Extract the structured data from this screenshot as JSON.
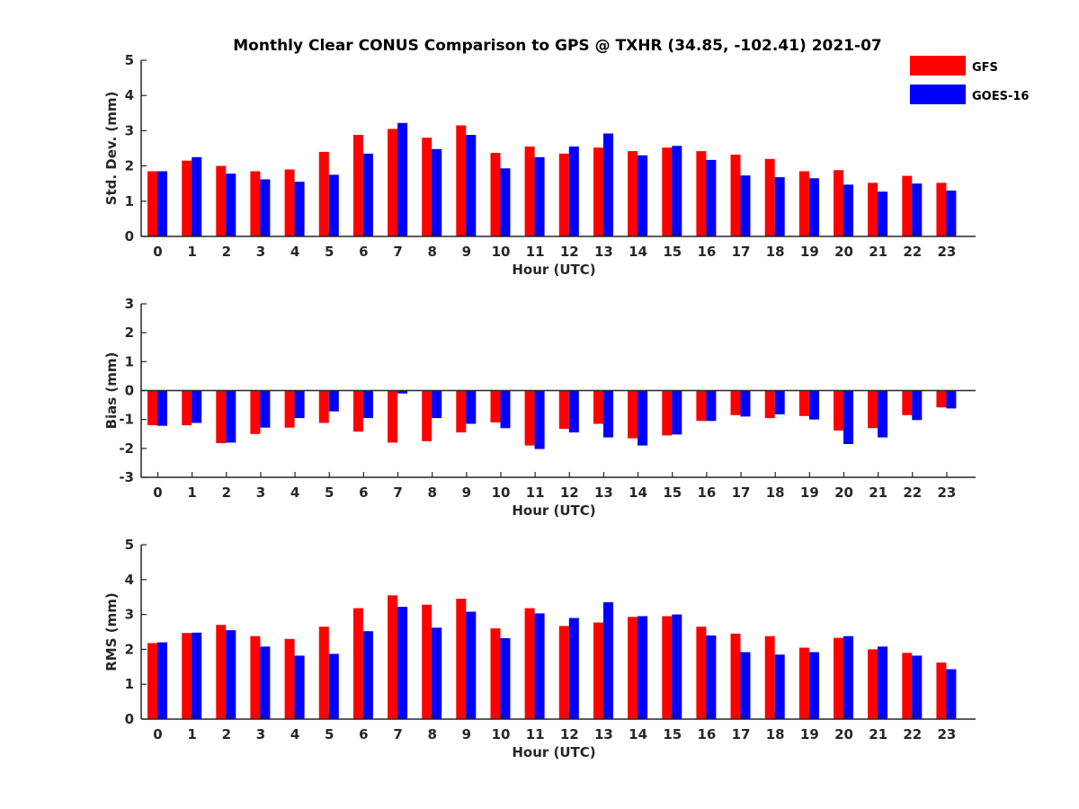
{
  "title": "Monthly Clear CONUS Comparison to GPS @ TXHR (34.85, -102.41) 2021-07",
  "legend": [
    {
      "name": "GFS",
      "color": "#ff0000"
    },
    {
      "name": "GOES-16",
      "color": "#0000ff"
    }
  ],
  "chart_data": [
    {
      "type": "bar",
      "id": "stddev",
      "categories": [
        "0",
        "1",
        "2",
        "3",
        "4",
        "5",
        "6",
        "7",
        "8",
        "9",
        "10",
        "11",
        "12",
        "13",
        "14",
        "15",
        "16",
        "17",
        "18",
        "19",
        "20",
        "21",
        "22",
        "23"
      ],
      "xlabel": "Hour (UTC)",
      "ylabel": "Std. Dev. (mm)",
      "ylim": [
        0,
        5
      ],
      "yticks": [
        "0",
        "1",
        "2",
        "3",
        "4",
        "5"
      ],
      "series": [
        {
          "name": "GFS",
          "color": "#ff0000",
          "values": [
            1.85,
            2.15,
            2.0,
            1.85,
            1.9,
            2.4,
            2.88,
            3.05,
            2.8,
            3.15,
            2.37,
            2.55,
            2.35,
            2.52,
            2.42,
            2.52,
            2.42,
            2.32,
            2.2,
            1.85,
            1.88,
            1.52,
            1.72,
            1.52
          ]
        },
        {
          "name": "GOES-16",
          "color": "#0000ff",
          "values": [
            1.85,
            2.25,
            1.78,
            1.62,
            1.55,
            1.75,
            2.35,
            3.22,
            2.48,
            2.88,
            1.93,
            2.25,
            2.55,
            2.92,
            2.3,
            2.57,
            2.17,
            1.73,
            1.68,
            1.65,
            1.47,
            1.27,
            1.5,
            1.3
          ]
        }
      ]
    },
    {
      "type": "bar",
      "id": "bias",
      "categories": [
        "0",
        "1",
        "2",
        "3",
        "4",
        "5",
        "6",
        "7",
        "8",
        "9",
        "10",
        "11",
        "12",
        "13",
        "14",
        "15",
        "16",
        "17",
        "18",
        "19",
        "20",
        "21",
        "22",
        "23"
      ],
      "xlabel": "Hour (UTC)",
      "ylabel": "Bias (mm)",
      "ylim": [
        -3,
        3
      ],
      "yticks": [
        "-3",
        "-2",
        "-1",
        "0",
        "1",
        "2",
        "3"
      ],
      "series": [
        {
          "name": "GFS",
          "color": "#ff0000",
          "values": [
            -1.2,
            -1.2,
            -1.82,
            -1.5,
            -1.28,
            -1.12,
            -1.42,
            -1.8,
            -1.75,
            -1.45,
            -1.1,
            -1.9,
            -1.32,
            -1.15,
            -1.65,
            -1.55,
            -1.05,
            -0.85,
            -0.95,
            -0.88,
            -1.38,
            -1.3,
            -0.85,
            -0.58
          ]
        },
        {
          "name": "GOES-16",
          "color": "#0000ff",
          "values": [
            -1.22,
            -1.12,
            -1.8,
            -1.28,
            -0.95,
            -0.72,
            -0.95,
            -0.1,
            -0.95,
            -1.15,
            -1.3,
            -2.02,
            -1.45,
            -1.62,
            -1.9,
            -1.52,
            -1.05,
            -0.9,
            -0.82,
            -1.0,
            -1.85,
            -1.62,
            -1.02,
            -0.62
          ]
        }
      ]
    },
    {
      "type": "bar",
      "id": "rms",
      "categories": [
        "0",
        "1",
        "2",
        "3",
        "4",
        "5",
        "6",
        "7",
        "8",
        "9",
        "10",
        "11",
        "12",
        "13",
        "14",
        "15",
        "16",
        "17",
        "18",
        "19",
        "20",
        "21",
        "22",
        "23"
      ],
      "xlabel": "Hour (UTC)",
      "ylabel": "RMS (mm)",
      "ylim": [
        0,
        5
      ],
      "yticks": [
        "0",
        "1",
        "2",
        "3",
        "4",
        "5"
      ],
      "series": [
        {
          "name": "GFS",
          "color": "#ff0000",
          "values": [
            2.18,
            2.47,
            2.7,
            2.38,
            2.3,
            2.65,
            3.18,
            3.55,
            3.28,
            3.45,
            2.6,
            3.18,
            2.67,
            2.77,
            2.93,
            2.95,
            2.65,
            2.45,
            2.38,
            2.05,
            2.33,
            2.0,
            1.9,
            1.62
          ]
        },
        {
          "name": "GOES-16",
          "color": "#0000ff",
          "values": [
            2.2,
            2.48,
            2.55,
            2.08,
            1.82,
            1.87,
            2.52,
            3.22,
            2.62,
            3.08,
            2.32,
            3.03,
            2.9,
            3.35,
            2.95,
            3.0,
            2.4,
            1.92,
            1.85,
            1.92,
            2.38,
            2.08,
            1.82,
            1.43
          ]
        }
      ]
    }
  ]
}
